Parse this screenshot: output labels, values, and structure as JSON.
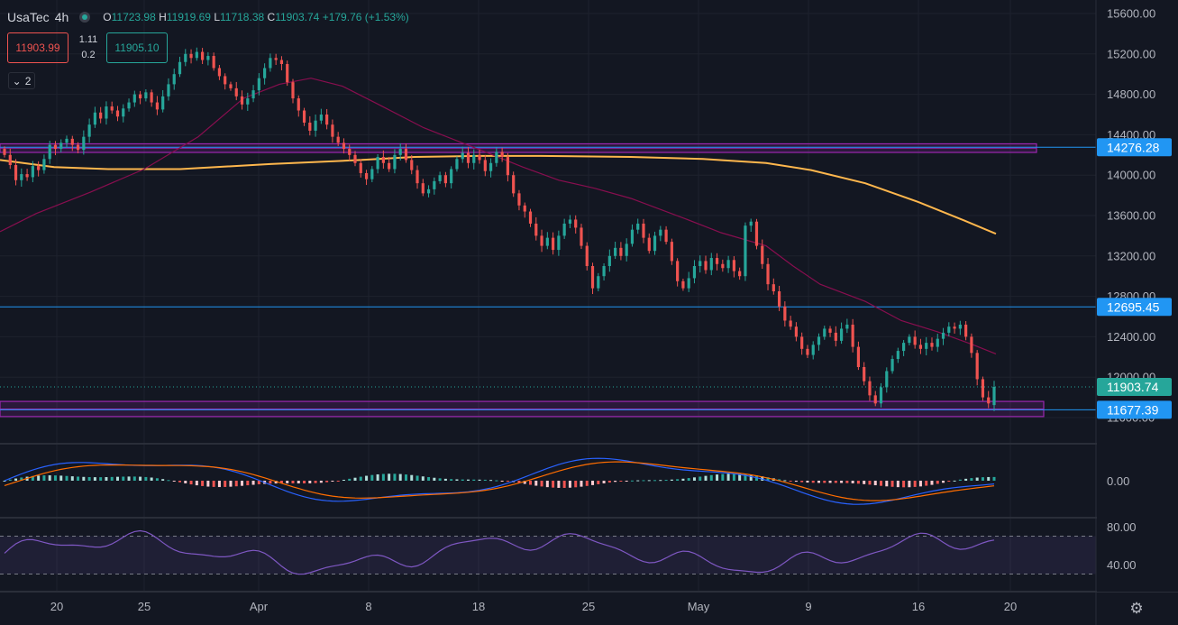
{
  "header": {
    "symbol": "UsaTec",
    "interval": "4h",
    "open_label": "O",
    "open": "11723.98",
    "high_label": "H",
    "high": "11919.69",
    "low_label": "L",
    "low": "11718.38",
    "close_label": "C",
    "close": "11903.74",
    "change": "+179.76 (+1.53%)"
  },
  "trade": {
    "bid": "11903.99",
    "ask": "11905.10",
    "spread_top": "1.11",
    "spread_bottom": "0.2"
  },
  "indicators_toggle": {
    "count": "2"
  },
  "price_axis": {
    "ticks": [
      "15600.00",
      "15200.00",
      "14800.00",
      "14400.00",
      "14000.00",
      "13600.00",
      "13200.00",
      "12800.00",
      "12400.00",
      "12000.00",
      "11600.00"
    ],
    "tick_values": [
      15600,
      15200,
      14800,
      14400,
      14000,
      13600,
      13200,
      12800,
      12400,
      12000,
      11600
    ],
    "labels": [
      {
        "text": "14276.28",
        "value": 14276.28,
        "color": "#2196f3"
      },
      {
        "text": "12695.45",
        "value": 12695.45,
        "color": "#2196f3"
      },
      {
        "text": "11903.74",
        "value": 11903.74,
        "color": "#26a69a"
      },
      {
        "text": "11677.39",
        "value": 11677.39,
        "color": "#2196f3"
      }
    ]
  },
  "macd_axis": {
    "ticks": [
      "0.00"
    ]
  },
  "rsi_axis": {
    "ticks": [
      "80.00",
      "40.00"
    ],
    "levels": [
      70,
      30
    ]
  },
  "time_axis": {
    "ticks": [
      "20",
      "25",
      "Apr",
      "8",
      "18",
      "25",
      "May",
      "9",
      "16",
      "20"
    ]
  },
  "zones": [
    {
      "low": 14225,
      "high": 14310
    },
    {
      "low": 11610,
      "high": 11760
    }
  ],
  "chart_data": {
    "type": "candlestick",
    "ylim": [
      11550,
      15700
    ],
    "horizontal_lines": [
      14276.28,
      12695.45,
      11677.39
    ],
    "last_price": 11903.74,
    "ma_fast": [
      [
        0,
        13440
      ],
      [
        40,
        13620
      ],
      [
        100,
        13830
      ],
      [
        160,
        14060
      ],
      [
        220,
        14380
      ],
      [
        270,
        14760
      ],
      [
        310,
        14900
      ],
      [
        345,
        14960
      ],
      [
        380,
        14880
      ],
      [
        420,
        14700
      ],
      [
        470,
        14470
      ],
      [
        530,
        14260
      ],
      [
        580,
        14080
      ],
      [
        620,
        13950
      ],
      [
        660,
        13870
      ],
      [
        700,
        13770
      ],
      [
        760,
        13570
      ],
      [
        800,
        13430
      ],
      [
        850,
        13300
      ],
      [
        880,
        13100
      ],
      [
        910,
        12920
      ],
      [
        960,
        12750
      ],
      [
        1000,
        12560
      ],
      [
        1040,
        12450
      ],
      [
        1080,
        12320
      ],
      [
        1105,
        12230
      ]
    ],
    "ma_slow": [
      [
        0,
        14150
      ],
      [
        60,
        14080
      ],
      [
        120,
        14060
      ],
      [
        200,
        14060
      ],
      [
        300,
        14110
      ],
      [
        400,
        14150
      ],
      [
        460,
        14180
      ],
      [
        530,
        14190
      ],
      [
        600,
        14190
      ],
      [
        700,
        14180
      ],
      [
        780,
        14160
      ],
      [
        850,
        14120
      ],
      [
        900,
        14050
      ],
      [
        960,
        13920
      ],
      [
        1020,
        13730
      ],
      [
        1070,
        13550
      ],
      [
        1105,
        13420
      ]
    ],
    "candles": [
      [
        14260,
        14200
      ],
      [
        14200,
        14100
      ],
      [
        14100,
        13950
      ],
      [
        13950,
        14010
      ],
      [
        14010,
        13980
      ],
      [
        13980,
        14090
      ],
      [
        14090,
        14050
      ],
      [
        14050,
        14160
      ],
      [
        14160,
        14300
      ],
      [
        14300,
        14260
      ],
      [
        14260,
        14320
      ],
      [
        14320,
        14360
      ],
      [
        14360,
        14300
      ],
      [
        14300,
        14250
      ],
      [
        14250,
        14380
      ],
      [
        14380,
        14500
      ],
      [
        14500,
        14620
      ],
      [
        14620,
        14560
      ],
      [
        14560,
        14680
      ],
      [
        14680,
        14640
      ],
      [
        14640,
        14580
      ],
      [
        14580,
        14660
      ],
      [
        14660,
        14720
      ],
      [
        14720,
        14800
      ],
      [
        14800,
        14760
      ],
      [
        14760,
        14820
      ],
      [
        14820,
        14720
      ],
      [
        14720,
        14650
      ],
      [
        14650,
        14780
      ],
      [
        14780,
        14900
      ],
      [
        14900,
        15000
      ],
      [
        15000,
        15120
      ],
      [
        15120,
        15200
      ],
      [
        15200,
        15160
      ],
      [
        15160,
        15220
      ],
      [
        15220,
        15140
      ],
      [
        15140,
        15180
      ],
      [
        15180,
        15060
      ],
      [
        15060,
        14980
      ],
      [
        14980,
        14900
      ],
      [
        14900,
        14860
      ],
      [
        14860,
        14780
      ],
      [
        14780,
        14700
      ],
      [
        14700,
        14760
      ],
      [
        14760,
        14840
      ],
      [
        14840,
        14960
      ],
      [
        14960,
        15060
      ],
      [
        15060,
        15160
      ],
      [
        15160,
        15140
      ],
      [
        15140,
        15100
      ],
      [
        15100,
        14920
      ],
      [
        14920,
        14760
      ],
      [
        14760,
        14640
      ],
      [
        14640,
        14520
      ],
      [
        14520,
        14440
      ],
      [
        14440,
        14540
      ],
      [
        14540,
        14600
      ],
      [
        14600,
        14500
      ],
      [
        14500,
        14380
      ],
      [
        14380,
        14320
      ],
      [
        14320,
        14260
      ],
      [
        14260,
        14200
      ],
      [
        14200,
        14120
      ],
      [
        14120,
        14020
      ],
      [
        14020,
        13960
      ],
      [
        13960,
        14060
      ],
      [
        14060,
        14180
      ],
      [
        14180,
        14120
      ],
      [
        14120,
        14060
      ],
      [
        14060,
        14200
      ],
      [
        14200,
        14260
      ],
      [
        14260,
        14150
      ],
      [
        14150,
        14050
      ],
      [
        14050,
        13920
      ],
      [
        13920,
        13820
      ],
      [
        13820,
        13860
      ],
      [
        13860,
        13940
      ],
      [
        13940,
        14000
      ],
      [
        14000,
        13920
      ],
      [
        13920,
        14060
      ],
      [
        14060,
        14160
      ],
      [
        14160,
        14220
      ],
      [
        14220,
        14120
      ],
      [
        14120,
        14200
      ],
      [
        14200,
        14150
      ],
      [
        14150,
        14040
      ],
      [
        14040,
        14120
      ],
      [
        14120,
        14230
      ],
      [
        14230,
        14180
      ],
      [
        14180,
        14000
      ],
      [
        14000,
        13820
      ],
      [
        13820,
        13700
      ],
      [
        13700,
        13640
      ],
      [
        13640,
        13520
      ],
      [
        13520,
        13400
      ],
      [
        13400,
        13300
      ],
      [
        13300,
        13380
      ],
      [
        13380,
        13260
      ],
      [
        13260,
        13400
      ],
      [
        13400,
        13520
      ],
      [
        13520,
        13560
      ],
      [
        13560,
        13480
      ],
      [
        13480,
        13300
      ],
      [
        13300,
        13100
      ],
      [
        13100,
        12880
      ],
      [
        12880,
        13000
      ],
      [
        13000,
        13100
      ],
      [
        13100,
        13200
      ],
      [
        13200,
        13280
      ],
      [
        13280,
        13200
      ],
      [
        13200,
        13320
      ],
      [
        13320,
        13460
      ],
      [
        13460,
        13520
      ],
      [
        13520,
        13380
      ],
      [
        13380,
        13250
      ],
      [
        13250,
        13400
      ],
      [
        13400,
        13460
      ],
      [
        13460,
        13340
      ],
      [
        13340,
        13150
      ],
      [
        13150,
        12950
      ],
      [
        12950,
        12880
      ],
      [
        12880,
        12980
      ],
      [
        12980,
        13100
      ],
      [
        13100,
        13150
      ],
      [
        13150,
        13060
      ],
      [
        13060,
        13180
      ],
      [
        13180,
        13120
      ],
      [
        13120,
        13080
      ],
      [
        13080,
        13160
      ],
      [
        13160,
        13050
      ],
      [
        13050,
        13000
      ],
      [
        13000,
        13500
      ],
      [
        13500,
        13540
      ],
      [
        13540,
        13300
      ],
      [
        13300,
        13120
      ],
      [
        13120,
        12920
      ],
      [
        12920,
        12850
      ],
      [
        12850,
        12700
      ],
      [
        12700,
        12560
      ],
      [
        12560,
        12500
      ],
      [
        12500,
        12400
      ],
      [
        12400,
        12280
      ],
      [
        12280,
        12220
      ],
      [
        12220,
        12320
      ],
      [
        12320,
        12400
      ],
      [
        12400,
        12480
      ],
      [
        12480,
        12440
      ],
      [
        12440,
        12360
      ],
      [
        12360,
        12480
      ],
      [
        12480,
        12520
      ],
      [
        12520,
        12300
      ],
      [
        12300,
        12100
      ],
      [
        12100,
        11960
      ],
      [
        11960,
        11820
      ],
      [
        11820,
        11740
      ],
      [
        11740,
        11900
      ],
      [
        11900,
        12060
      ],
      [
        12060,
        12180
      ],
      [
        12180,
        12260
      ],
      [
        12260,
        12340
      ],
      [
        12340,
        12400
      ],
      [
        12400,
        12320
      ],
      [
        12320,
        12280
      ],
      [
        12280,
        12340
      ],
      [
        12340,
        12300
      ],
      [
        12300,
        12380
      ],
      [
        12380,
        12440
      ],
      [
        12440,
        12500
      ],
      [
        12500,
        12480
      ],
      [
        12480,
        12520
      ],
      [
        12520,
        12400
      ],
      [
        12400,
        12240
      ],
      [
        12240,
        11980
      ],
      [
        11980,
        11800
      ],
      [
        11800,
        11740
      ],
      [
        11723.98,
        11903.74
      ]
    ]
  }
}
